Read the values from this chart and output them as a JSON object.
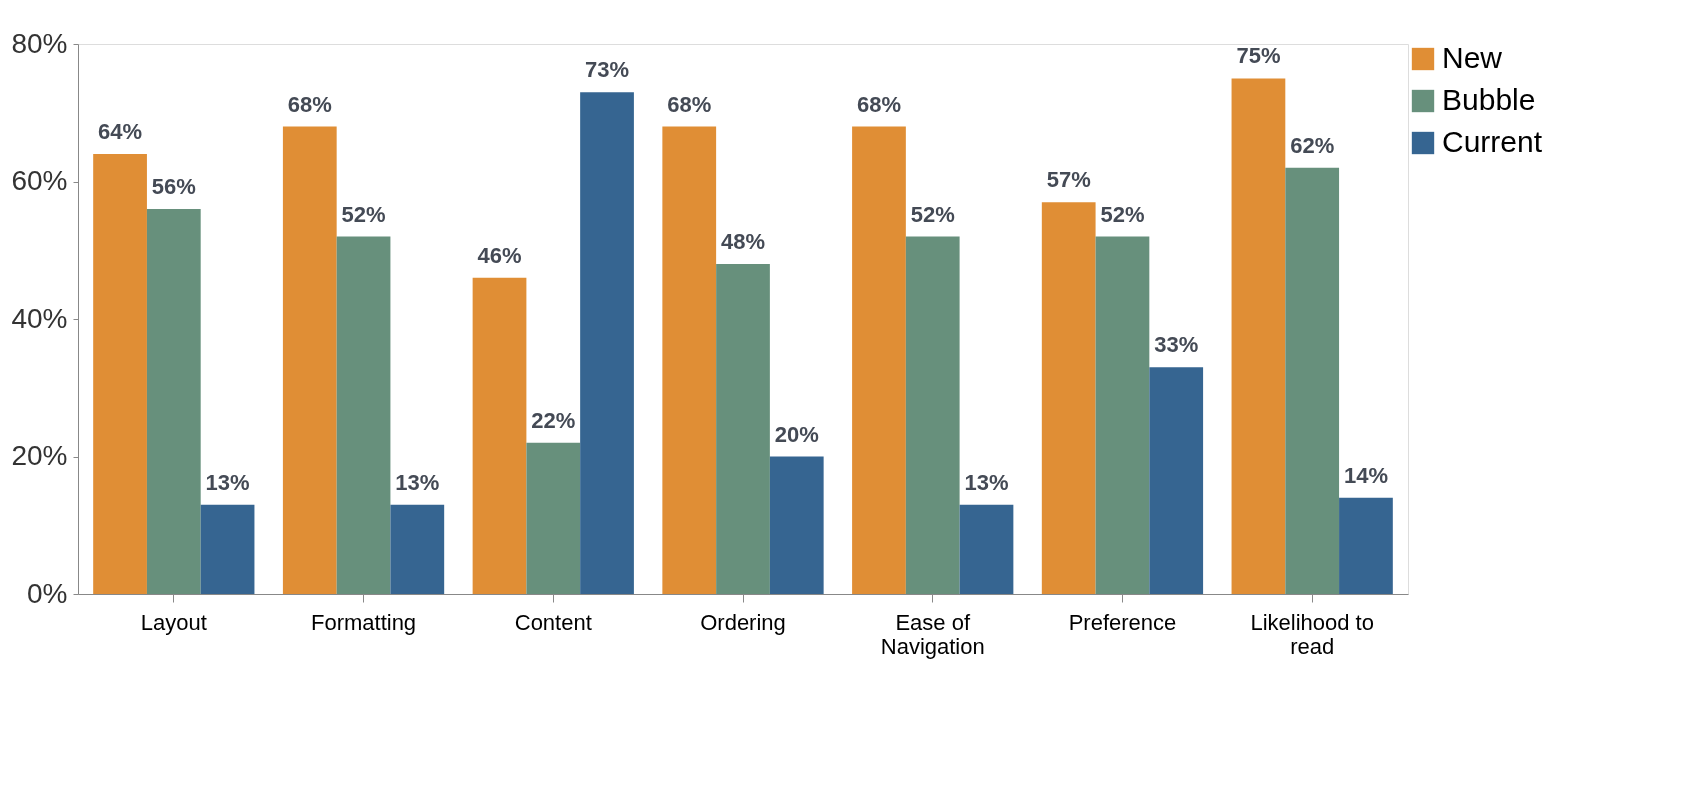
{
  "chart_data": {
    "type": "bar",
    "categories": [
      "Layout",
      "Formatting",
      "Content",
      "Ordering",
      "Ease of Navigation",
      "Preference",
      "Likelihood to read"
    ],
    "series": [
      {
        "name": "New",
        "color": "#e08e35",
        "values": [
          64,
          68,
          46,
          68,
          68,
          57,
          75
        ],
        "value_labels": [
          "64%",
          "68%",
          "46%",
          "68%",
          "68%",
          "57%",
          "75%"
        ]
      },
      {
        "name": "Bubble",
        "color": "#67907c",
        "values": [
          56,
          52,
          22,
          48,
          52,
          52,
          62
        ],
        "value_labels": [
          "56%",
          "52%",
          "22%",
          "48%",
          "52%",
          "52%",
          "62%"
        ]
      },
      {
        "name": "Current",
        "color": "#366591",
        "values": [
          13,
          13,
          73,
          20,
          13,
          33,
          14
        ],
        "value_labels": [
          "13%",
          "13%",
          "73%",
          "20%",
          "13%",
          "33%",
          "14%"
        ]
      }
    ],
    "ylim": [
      0,
      80
    ],
    "yticks": [
      {
        "value": 0,
        "label": "0%"
      },
      {
        "value": 20,
        "label": "20%"
      },
      {
        "value": 40,
        "label": "40%"
      },
      {
        "value": 60,
        "label": "60%"
      },
      {
        "value": 80,
        "label": "80%"
      }
    ],
    "grid": false,
    "legend": "top right"
  }
}
